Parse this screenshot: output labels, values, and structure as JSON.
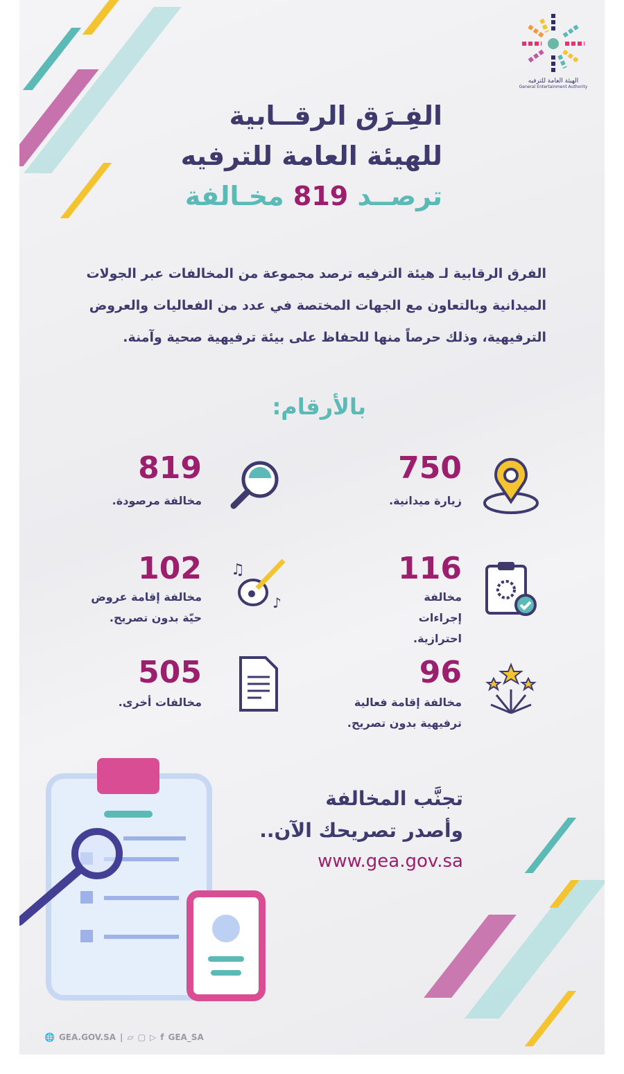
{
  "logo": {
    "text_ar": "الهيئة العامة للترفيه",
    "text_en": "General Entertainment Authority"
  },
  "title": {
    "line1": "الفِـرَق الرقــابية",
    "line2": "للهيئة العامة للترفيه",
    "line3_a": "ترصــد",
    "line3_num": "819",
    "line3_b": "مخـالفة"
  },
  "intro": "الفرق الرقابية لـ هيئة الترفيه ترصد مجموعة من المخالفات عبر الجولات الميدانية وبالتعاون مع الجهات المختصة في عدد من الفعاليات والعروض الترفيهية، وذلك حرصاً منها للحفاظ على بيئة ترفيهية صحية وآمنة.",
  "section_title": "بالأرقام:",
  "stats": [
    {
      "value": "750",
      "label": "زيارة ميدانية.",
      "icon": "location-pin-icon"
    },
    {
      "value": "819",
      "label": "مخالفة مرصودة.",
      "icon": "magnifier-icon"
    },
    {
      "value": "116",
      "label": "مخالفة إجراءات احترازية.",
      "icon": "clipboard-virus-icon"
    },
    {
      "value": "102",
      "label": "مخالفة إقامة عروض حيّة بدون تصريح.",
      "icon": "guitar-icon"
    },
    {
      "value": "96",
      "label": "مخالفة إقامة فعالية ترفيهية بدون تصريح.",
      "icon": "fireworks-icon"
    },
    {
      "value": "505",
      "label": "مخالفات أخرى.",
      "icon": "document-icon"
    }
  ],
  "cta": {
    "line1": "تجنَّب المخالفة",
    "line2": "وأصدر تصريحك الآن..",
    "url": "www.gea.gov.sa"
  },
  "footer": {
    "website": "GEA.GOV.SA",
    "handle": "GEA_SA"
  },
  "colors": {
    "navy": "#3e3a6d",
    "teal": "#5cbab6",
    "magenta": "#9c1f6d",
    "yellow": "#f4c430",
    "pink": "#c05aa0"
  }
}
